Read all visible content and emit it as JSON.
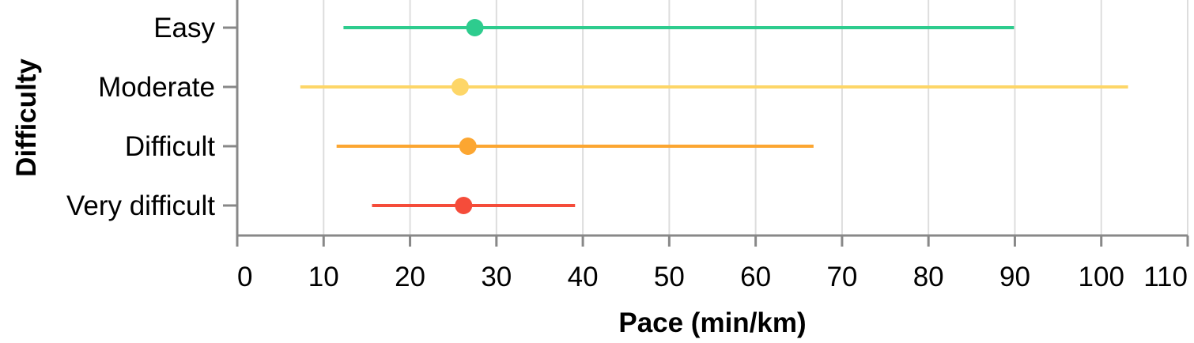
{
  "chart_data": {
    "type": "errorbar",
    "xlabel": "Pace (min/km)",
    "ylabel": "Difficulty",
    "xlim": [
      0,
      110
    ],
    "x_ticks": [
      0,
      10,
      20,
      30,
      40,
      50,
      60,
      70,
      80,
      90,
      100,
      110
    ],
    "grid": true,
    "categories": [
      "Easy",
      "Moderate",
      "Difficult",
      "Very difficult"
    ],
    "series": [
      {
        "category": "Easy",
        "min": 12.3,
        "median": 27.5,
        "max": 89.9,
        "color": "#2ecc8e"
      },
      {
        "category": "Moderate",
        "min": 7.3,
        "median": 25.8,
        "max": 103.1,
        "color": "#fdd668"
      },
      {
        "category": "Difficult",
        "min": 11.5,
        "median": 26.7,
        "max": 66.7,
        "color": "#fca631"
      },
      {
        "category": "Very difficult",
        "min": 15.6,
        "median": 26.2,
        "max": 39.1,
        "color": "#f54c3a"
      }
    ]
  }
}
